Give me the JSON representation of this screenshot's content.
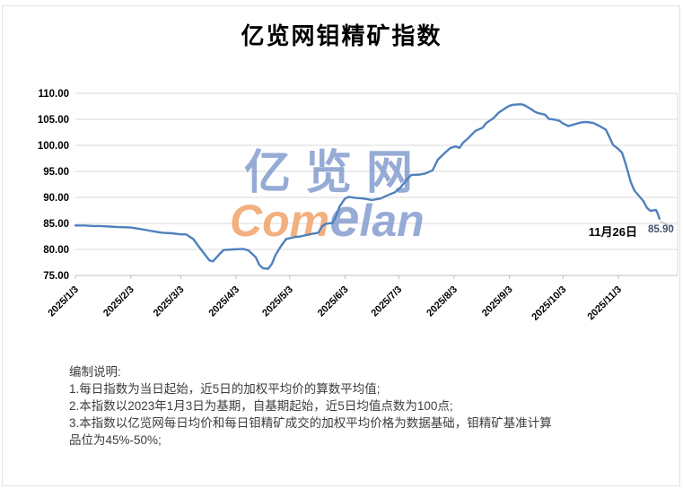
{
  "title": "亿览网钼精矿指数",
  "watermark": {
    "cn": "亿览网",
    "com": "Com",
    "e": "e",
    "lan": "lan"
  },
  "annotation": {
    "date": "11月26日",
    "value": "85.90"
  },
  "notes": {
    "heading": "编制说明:",
    "lines": [
      "1.每日指数为当日起始，近5日的加权平均价的算数平均值;",
      "2.本指数以2023年1月3日为基期，自基期起始，近5日均值点数为100点;",
      "3.本指数以亿览网每日均价和每日钼精矿成交的加权平均价格为数据基础，钼精矿基准计算",
      "品位为45%-50%;"
    ]
  },
  "colors": {
    "line": "#4F81BD",
    "grid": "#D9D9D9",
    "axis": "#BFBFBF",
    "leader": "#A6A6A6",
    "tick_label": "#000000",
    "annotation_value": "#44546A",
    "watermark_blue": "rgba(124,150,203,0.80)",
    "watermark_orange": "rgba(241,162,105,0.85)",
    "notes_text": "#3d3d3d"
  },
  "chart_data": {
    "type": "line",
    "title": "亿览网钼精矿指数",
    "xlabel": "",
    "ylabel": "",
    "ylim": [
      75,
      110
    ],
    "y_ticks": [
      110,
      105,
      100,
      95,
      90,
      85,
      80,
      75
    ],
    "y_tick_labels": [
      "110.00",
      "105.00",
      "100.00",
      "95.00",
      "90.00",
      "85.00",
      "80.00",
      "75.00"
    ],
    "x_tick_labels": [
      "2025/1/3",
      "2025/2/3",
      "2025/3/3",
      "2025/4/3",
      "2025/5/3",
      "2025/6/3",
      "2025/7/3",
      "2025/8/3",
      "2025/9/3",
      "2025/10/3",
      "2025/11/3"
    ],
    "grid": "horizontal",
    "legend": "none",
    "last_label": {
      "date": "2025/11/26",
      "text": "11月26日",
      "value": 85.9
    },
    "series": [
      {
        "name": "钼精矿指数",
        "points": [
          [
            "2025/1/3",
            84.6
          ],
          [
            "2025/1/8",
            84.6
          ],
          [
            "2025/1/13",
            84.5
          ],
          [
            "2025/1/17",
            84.5
          ],
          [
            "2025/1/22",
            84.4
          ],
          [
            "2025/1/27",
            84.3
          ],
          [
            "2025/2/3",
            84.2
          ],
          [
            "2025/2/7",
            84.0
          ],
          [
            "2025/2/12",
            83.7
          ],
          [
            "2025/2/17",
            83.4
          ],
          [
            "2025/2/21",
            83.2
          ],
          [
            "2025/2/26",
            83.1
          ],
          [
            "2025/3/3",
            82.9
          ],
          [
            "2025/3/6",
            82.9
          ],
          [
            "2025/3/10",
            82.0
          ],
          [
            "2025/3/13",
            80.6
          ],
          [
            "2025/3/17",
            78.8
          ],
          [
            "2025/3/19",
            77.9
          ],
          [
            "2025/3/21",
            77.7
          ],
          [
            "2025/3/25",
            79.2
          ],
          [
            "2025/3/27",
            79.9
          ],
          [
            "2025/4/1",
            80.0
          ],
          [
            "2025/4/7",
            80.1
          ],
          [
            "2025/4/10",
            79.8
          ],
          [
            "2025/4/14",
            78.5
          ],
          [
            "2025/4/16",
            77.0
          ],
          [
            "2025/4/18",
            76.4
          ],
          [
            "2025/4/21",
            76.3
          ],
          [
            "2025/4/23",
            77.2
          ],
          [
            "2025/4/25",
            78.9
          ],
          [
            "2025/4/28",
            80.6
          ],
          [
            "2025/5/1",
            82.0
          ],
          [
            "2025/5/6",
            82.4
          ],
          [
            "2025/5/9",
            82.5
          ],
          [
            "2025/5/14",
            82.9
          ],
          [
            "2025/5/19",
            83.2
          ],
          [
            "2025/5/21",
            84.4
          ],
          [
            "2025/5/23",
            84.9
          ],
          [
            "2025/5/27",
            85.1
          ],
          [
            "2025/5/29",
            86.5
          ],
          [
            "2025/5/31",
            88.3
          ],
          [
            "2025/6/3",
            89.8
          ],
          [
            "2025/6/5",
            90.1
          ],
          [
            "2025/6/9",
            89.9
          ],
          [
            "2025/6/13",
            89.8
          ],
          [
            "2025/6/18",
            89.5
          ],
          [
            "2025/6/23",
            89.8
          ],
          [
            "2025/6/26",
            90.3
          ],
          [
            "2025/7/1",
            91.0
          ],
          [
            "2025/7/4",
            91.9
          ],
          [
            "2025/7/8",
            93.6
          ],
          [
            "2025/7/10",
            94.3
          ],
          [
            "2025/7/15",
            94.4
          ],
          [
            "2025/7/18",
            94.6
          ],
          [
            "2025/7/22",
            95.2
          ],
          [
            "2025/7/25",
            97.3
          ],
          [
            "2025/7/29",
            98.6
          ],
          [
            "2025/8/1",
            99.5
          ],
          [
            "2025/8/4",
            99.8
          ],
          [
            "2025/8/6",
            99.5
          ],
          [
            "2025/8/8",
            100.5
          ],
          [
            "2025/8/11",
            101.4
          ],
          [
            "2025/8/13",
            102.1
          ],
          [
            "2025/8/15",
            102.8
          ],
          [
            "2025/8/19",
            103.4
          ],
          [
            "2025/8/21",
            104.3
          ],
          [
            "2025/8/25",
            105.2
          ],
          [
            "2025/8/28",
            106.3
          ],
          [
            "2025/9/1",
            107.2
          ],
          [
            "2025/9/3",
            107.6
          ],
          [
            "2025/9/5",
            107.8
          ],
          [
            "2025/9/9",
            107.9
          ],
          [
            "2025/9/11",
            107.8
          ],
          [
            "2025/9/15",
            107.0
          ],
          [
            "2025/9/17",
            106.5
          ],
          [
            "2025/9/19",
            106.2
          ],
          [
            "2025/9/23",
            105.9
          ],
          [
            "2025/9/25",
            105.1
          ],
          [
            "2025/9/29",
            104.9
          ],
          [
            "2025/10/1",
            104.7
          ],
          [
            "2025/10/3",
            104.2
          ],
          [
            "2025/10/6",
            103.7
          ],
          [
            "2025/10/9",
            104.0
          ],
          [
            "2025/10/13",
            104.4
          ],
          [
            "2025/10/16",
            104.5
          ],
          [
            "2025/10/20",
            104.3
          ],
          [
            "2025/10/23",
            103.8
          ],
          [
            "2025/10/27",
            103.0
          ],
          [
            "2025/10/29",
            101.6
          ],
          [
            "2025/10/31",
            100.1
          ],
          [
            "2025/11/3",
            99.3
          ],
          [
            "2025/11/5",
            98.6
          ],
          [
            "2025/11/7",
            96.5
          ],
          [
            "2025/11/10",
            92.9
          ],
          [
            "2025/11/12",
            91.3
          ],
          [
            "2025/11/14",
            90.5
          ],
          [
            "2025/11/17",
            89.3
          ],
          [
            "2025/11/19",
            88.0
          ],
          [
            "2025/11/21",
            87.4
          ],
          [
            "2025/11/24",
            87.6
          ],
          [
            "2025/11/25",
            86.9
          ],
          [
            "2025/11/26",
            85.9
          ]
        ]
      }
    ]
  }
}
